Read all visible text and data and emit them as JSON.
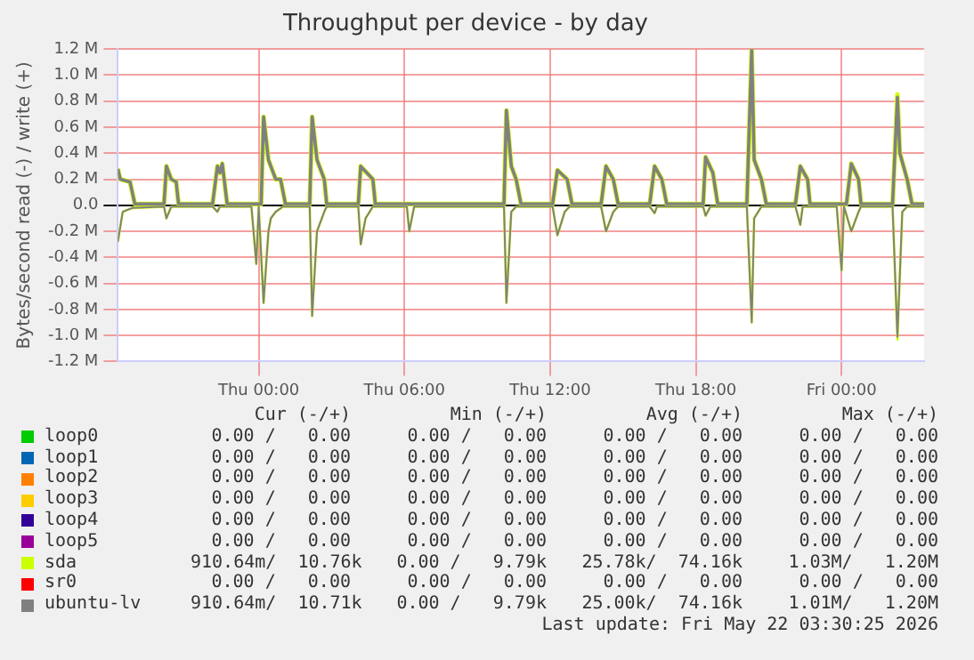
{
  "chart_data": {
    "type": "line",
    "title": "Throughput per device - by day",
    "ylabel": "Bytes/second read (-) / write (+)",
    "xlim": [
      "2026-05-20T18:12",
      "2026-05-22T03:24"
    ],
    "xticks": [
      {
        "value": "2026-05-21T00:00",
        "label": "Thu 00:00"
      },
      {
        "value": "2026-05-21T06:00",
        "label": "Thu 06:00"
      },
      {
        "value": "2026-05-21T12:00",
        "label": "Thu 12:00"
      },
      {
        "value": "2026-05-21T18:00",
        "label": "Thu 18:00"
      },
      {
        "value": "2026-05-22T00:00",
        "label": "Fri 00:00"
      }
    ],
    "ylim": [
      -1200000,
      1200000
    ],
    "yticks": [
      {
        "value": -1200000,
        "label": "-1.2 M"
      },
      {
        "value": -1000000,
        "label": "-1.0 M"
      },
      {
        "value": -800000,
        "label": "-0.8 M"
      },
      {
        "value": -600000,
        "label": "-0.6 M"
      },
      {
        "value": -400000,
        "label": "-0.4 M"
      },
      {
        "value": -200000,
        "label": "-0.2 M"
      },
      {
        "value": 0,
        "label": "0.0"
      },
      {
        "value": 200000,
        "label": "0.2 M"
      },
      {
        "value": 400000,
        "label": "0.4 M"
      },
      {
        "value": 600000,
        "label": "0.6 M"
      },
      {
        "value": 800000,
        "label": "0.8 M"
      },
      {
        "value": 1000000,
        "label": "1.0 M"
      },
      {
        "value": 1200000,
        "label": "1.2 M"
      }
    ],
    "grid": true,
    "legend": "bottom",
    "marker": "none",
    "line_style": "solid",
    "series": [
      {
        "name": "loop0",
        "color": "#00cc00"
      },
      {
        "name": "loop1",
        "color": "#0066b3"
      },
      {
        "name": "loop2",
        "color": "#ff8000"
      },
      {
        "name": "loop3",
        "color": "#ffcc00"
      },
      {
        "name": "loop4",
        "color": "#330099"
      },
      {
        "name": "loop5",
        "color": "#990099"
      },
      {
        "name": "sda",
        "color": "#ccff00",
        "x": [
          "2026-05-20T18:12",
          "2026-05-20T18:18",
          "2026-05-20T18:42",
          "2026-05-20T18:54",
          "2026-05-20T20:06",
          "2026-05-20T20:12",
          "2026-05-20T20:24",
          "2026-05-20T20:36",
          "2026-05-20T20:42",
          "2026-05-20T22:06",
          "2026-05-20T22:18",
          "2026-05-20T22:24",
          "2026-05-20T22:30",
          "2026-05-20T22:42",
          "2026-05-21T00:06",
          "2026-05-21T00:12",
          "2026-05-21T00:24",
          "2026-05-21T00:42",
          "2026-05-21T00:54",
          "2026-05-21T01:06",
          "2026-05-21T02:06",
          "2026-05-21T02:12",
          "2026-05-21T02:24",
          "2026-05-21T02:42",
          "2026-05-21T02:48",
          "2026-05-21T04:06",
          "2026-05-21T04:12",
          "2026-05-21T04:42",
          "2026-05-21T04:48",
          "2026-05-21T10:06",
          "2026-05-21T10:12",
          "2026-05-21T10:24",
          "2026-05-21T10:36",
          "2026-05-21T10:48",
          "2026-05-21T12:06",
          "2026-05-21T12:18",
          "2026-05-21T12:42",
          "2026-05-21T12:54",
          "2026-05-21T14:06",
          "2026-05-21T14:18",
          "2026-05-21T14:36",
          "2026-05-21T14:48",
          "2026-05-21T16:06",
          "2026-05-21T16:18",
          "2026-05-21T16:36",
          "2026-05-21T16:48",
          "2026-05-21T18:18",
          "2026-05-21T18:24",
          "2026-05-21T18:42",
          "2026-05-21T18:54",
          "2026-05-21T20:06",
          "2026-05-21T20:18",
          "2026-05-21T20:24",
          "2026-05-21T20:42",
          "2026-05-21T20:54",
          "2026-05-21T22:06",
          "2026-05-21T22:18",
          "2026-05-21T22:36",
          "2026-05-21T22:42",
          "2026-05-22T00:12",
          "2026-05-22T00:24",
          "2026-05-22T00:42",
          "2026-05-22T00:48",
          "2026-05-22T02:06",
          "2026-05-22T02:18",
          "2026-05-22T02:24",
          "2026-05-22T02:42",
          "2026-05-22T02:54",
          "2026-05-22T03:24"
        ],
        "values": [
          280000,
          200000,
          180000,
          10000,
          10000,
          300000,
          200000,
          180000,
          10000,
          10000,
          300000,
          250000,
          320000,
          10000,
          10000,
          680000,
          350000,
          200000,
          200000,
          10000,
          10000,
          680000,
          350000,
          200000,
          10000,
          10000,
          300000,
          200000,
          10000,
          10000,
          730000,
          300000,
          200000,
          10000,
          10000,
          270000,
          200000,
          10000,
          10000,
          300000,
          200000,
          10000,
          10000,
          300000,
          200000,
          10000,
          10000,
          370000,
          250000,
          10000,
          10000,
          1200000,
          350000,
          200000,
          10000,
          10000,
          300000,
          200000,
          10000,
          10000,
          320000,
          200000,
          10000,
          10000,
          850000,
          400000,
          200000,
          10000,
          10000
        ]
      },
      {
        "name": "sr0",
        "color": "#ff0000"
      },
      {
        "name": "ubuntu-lv",
        "color": "#808080",
        "x": [
          "2026-05-20T18:12",
          "2026-05-20T18:18",
          "2026-05-20T18:42",
          "2026-05-20T18:54",
          "2026-05-20T20:06",
          "2026-05-20T20:12",
          "2026-05-20T20:24",
          "2026-05-20T20:36",
          "2026-05-20T20:42",
          "2026-05-20T22:06",
          "2026-05-20T22:18",
          "2026-05-20T22:24",
          "2026-05-20T22:30",
          "2026-05-20T22:42",
          "2026-05-21T00:06",
          "2026-05-21T00:12",
          "2026-05-21T00:24",
          "2026-05-21T00:42",
          "2026-05-21T00:54",
          "2026-05-21T01:06",
          "2026-05-21T02:06",
          "2026-05-21T02:12",
          "2026-05-21T02:24",
          "2026-05-21T02:42",
          "2026-05-21T02:48",
          "2026-05-21T04:06",
          "2026-05-21T04:12",
          "2026-05-21T04:42",
          "2026-05-21T04:48",
          "2026-05-21T10:06",
          "2026-05-21T10:12",
          "2026-05-21T10:24",
          "2026-05-21T10:36",
          "2026-05-21T10:48",
          "2026-05-21T12:06",
          "2026-05-21T12:18",
          "2026-05-21T12:42",
          "2026-05-21T12:54",
          "2026-05-21T14:06",
          "2026-05-21T14:18",
          "2026-05-21T14:36",
          "2026-05-21T14:48",
          "2026-05-21T16:06",
          "2026-05-21T16:18",
          "2026-05-21T16:36",
          "2026-05-21T16:48",
          "2026-05-21T18:18",
          "2026-05-21T18:24",
          "2026-05-21T18:42",
          "2026-05-21T18:54",
          "2026-05-21T20:06",
          "2026-05-21T20:18",
          "2026-05-21T20:24",
          "2026-05-21T20:42",
          "2026-05-21T20:54",
          "2026-05-21T22:06",
          "2026-05-21T22:18",
          "2026-05-21T22:36",
          "2026-05-21T22:42",
          "2026-05-22T00:12",
          "2026-05-22T00:24",
          "2026-05-22T00:42",
          "2026-05-22T00:48",
          "2026-05-22T02:06",
          "2026-05-22T02:18",
          "2026-05-22T02:24",
          "2026-05-22T02:42",
          "2026-05-22T02:54",
          "2026-05-22T03:24"
        ],
        "values": [
          280000,
          200000,
          180000,
          10000,
          10000,
          300000,
          200000,
          180000,
          10000,
          10000,
          300000,
          250000,
          320000,
          10000,
          10000,
          680000,
          350000,
          200000,
          200000,
          10000,
          10000,
          680000,
          350000,
          200000,
          10000,
          10000,
          300000,
          200000,
          10000,
          10000,
          730000,
          300000,
          200000,
          10000,
          10000,
          270000,
          200000,
          10000,
          10000,
          300000,
          200000,
          10000,
          10000,
          300000,
          200000,
          10000,
          10000,
          370000,
          250000,
          10000,
          10000,
          1200000,
          350000,
          200000,
          10000,
          10000,
          300000,
          200000,
          10000,
          10000,
          320000,
          200000,
          10000,
          10000,
          830000,
          400000,
          200000,
          10000,
          10000
        ]
      },
      {
        "color": "#ccff00",
        "x": [
          "2026-05-20T18:12",
          "2026-05-20T18:24",
          "2026-05-20T18:48",
          "2026-05-20T20:06",
          "2026-05-20T20:12",
          "2026-05-20T20:24",
          "2026-05-20T22:06",
          "2026-05-20T22:18",
          "2026-05-20T22:24",
          "2026-05-20T23:42",
          "2026-05-20T23:54",
          "2026-05-21T00:00",
          "2026-05-21T00:12",
          "2026-05-21T00:24",
          "2026-05-21T00:30",
          "2026-05-21T00:42",
          "2026-05-21T01:00",
          "2026-05-21T02:06",
          "2026-05-21T02:12",
          "2026-05-21T02:24",
          "2026-05-21T02:42",
          "2026-05-21T02:48",
          "2026-05-21T04:06",
          "2026-05-21T04:12",
          "2026-05-21T04:24",
          "2026-05-21T04:42",
          "2026-05-21T06:06",
          "2026-05-21T06:12",
          "2026-05-21T06:24",
          "2026-05-21T10:06",
          "2026-05-21T10:12",
          "2026-05-21T10:24",
          "2026-05-21T10:36",
          "2026-05-21T12:06",
          "2026-05-21T12:18",
          "2026-05-21T12:36",
          "2026-05-21T12:48",
          "2026-05-21T14:06",
          "2026-05-21T14:18",
          "2026-05-21T14:36",
          "2026-05-21T14:48",
          "2026-05-21T16:06",
          "2026-05-21T16:18",
          "2026-05-21T16:24",
          "2026-05-21T18:18",
          "2026-05-21T18:24",
          "2026-05-21T18:36",
          "2026-05-21T20:06",
          "2026-05-21T20:18",
          "2026-05-21T20:24",
          "2026-05-21T20:42",
          "2026-05-21T22:06",
          "2026-05-21T22:18",
          "2026-05-21T22:24",
          "2026-05-21T23:48",
          "2026-05-22T00:00",
          "2026-05-22T00:06",
          "2026-05-22T00:24",
          "2026-05-22T00:42",
          "2026-05-22T00:48",
          "2026-05-22T02:06",
          "2026-05-22T02:18",
          "2026-05-22T02:30",
          "2026-05-22T02:42",
          "2026-05-22T03:24"
        ],
        "values": [
          -280000,
          -50000,
          -20000,
          -10000,
          -100000,
          -10000,
          -10000,
          -50000,
          -10000,
          -10000,
          -450000,
          -10000,
          -750000,
          -200000,
          -100000,
          -50000,
          -10000,
          -10000,
          -850000,
          -200000,
          -50000,
          -10000,
          -10000,
          -300000,
          -100000,
          -10000,
          -10000,
          -200000,
          -10000,
          -10000,
          -750000,
          -50000,
          -10000,
          -10000,
          -230000,
          -50000,
          -10000,
          -10000,
          -200000,
          -50000,
          -10000,
          -10000,
          -60000,
          -10000,
          -10000,
          -80000,
          -10000,
          -10000,
          -900000,
          -100000,
          -10000,
          -10000,
          -150000,
          -10000,
          -10000,
          -500000,
          -10000,
          -200000,
          -50000,
          -10000,
          -10000,
          -1030000,
          -50000,
          -10000,
          -10000
        ]
      },
      {
        "color": "#808080",
        "x": [
          "2026-05-20T18:12",
          "2026-05-20T18:24",
          "2026-05-20T18:48",
          "2026-05-20T20:06",
          "2026-05-20T20:12",
          "2026-05-20T20:24",
          "2026-05-20T22:06",
          "2026-05-20T22:18",
          "2026-05-20T22:24",
          "2026-05-20T23:42",
          "2026-05-20T23:54",
          "2026-05-21T00:00",
          "2026-05-21T00:12",
          "2026-05-21T00:24",
          "2026-05-21T00:30",
          "2026-05-21T00:42",
          "2026-05-21T01:00",
          "2026-05-21T02:06",
          "2026-05-21T02:12",
          "2026-05-21T02:24",
          "2026-05-21T02:42",
          "2026-05-21T02:48",
          "2026-05-21T04:06",
          "2026-05-21T04:12",
          "2026-05-21T04:24",
          "2026-05-21T04:42",
          "2026-05-21T06:06",
          "2026-05-21T06:12",
          "2026-05-21T06:24",
          "2026-05-21T10:06",
          "2026-05-21T10:12",
          "2026-05-21T10:24",
          "2026-05-21T10:36",
          "2026-05-21T12:06",
          "2026-05-21T12:18",
          "2026-05-21T12:36",
          "2026-05-21T12:48",
          "2026-05-21T14:06",
          "2026-05-21T14:18",
          "2026-05-21T14:36",
          "2026-05-21T14:48",
          "2026-05-21T16:06",
          "2026-05-21T16:18",
          "2026-05-21T16:24",
          "2026-05-21T18:18",
          "2026-05-21T18:24",
          "2026-05-21T18:36",
          "2026-05-21T20:06",
          "2026-05-21T20:18",
          "2026-05-21T20:24",
          "2026-05-21T20:42",
          "2026-05-21T22:06",
          "2026-05-21T22:18",
          "2026-05-21T22:24",
          "2026-05-21T23:48",
          "2026-05-22T00:00",
          "2026-05-22T00:06",
          "2026-05-22T00:24",
          "2026-05-22T00:42",
          "2026-05-22T00:48",
          "2026-05-22T02:06",
          "2026-05-22T02:18",
          "2026-05-22T02:30",
          "2026-05-22T02:42",
          "2026-05-22T03:24"
        ],
        "values": [
          -280000,
          -50000,
          -20000,
          -10000,
          -100000,
          -10000,
          -10000,
          -50000,
          -10000,
          -10000,
          -450000,
          -10000,
          -750000,
          -200000,
          -100000,
          -50000,
          -10000,
          -10000,
          -850000,
          -200000,
          -50000,
          -10000,
          -10000,
          -300000,
          -100000,
          -10000,
          -10000,
          -200000,
          -10000,
          -10000,
          -750000,
          -50000,
          -10000,
          -10000,
          -230000,
          -50000,
          -10000,
          -10000,
          -200000,
          -50000,
          -10000,
          -10000,
          -60000,
          -10000,
          -10000,
          -80000,
          -10000,
          -10000,
          -900000,
          -100000,
          -10000,
          -10000,
          -150000,
          -10000,
          -10000,
          -500000,
          -10000,
          -200000,
          -50000,
          -10000,
          -10000,
          -1010000,
          -50000,
          -10000,
          -10000
        ]
      }
    ],
    "annotations": [
      "Cur (-/+)",
      "Min (-/+)",
      "Avg (-/+)",
      "Max (-/+)",
      "0.00 /   0.00",
      "0.00 /   0.00",
      "0.00 /   0.00",
      "0.00 /   0.00",
      "0.00 /   0.00",
      "0.00 /   0.00",
      "0.00 /   0.00",
      "0.00 /   0.00",
      "0.00 /   0.00",
      "0.00 /   0.00",
      "0.00 /   0.00",
      "0.00 /   0.00",
      "0.00 /   0.00",
      "0.00 /   0.00",
      "0.00 /   0.00",
      "0.00 /   0.00",
      "0.00 /   0.00",
      "0.00 /   0.00",
      "0.00 /   0.00",
      "0.00 /   0.00",
      "0.00 /   0.00",
      "0.00 /   0.00",
      "0.00 /   0.00",
      "0.00 /   0.00",
      "910.64m/  10.76k",
      "0.00 /   9.79k",
      "25.78k/  74.16k",
      "1.03M/   1.20M",
      "0.00 /   0.00",
      "0.00 /   0.00",
      "0.00 /   0.00",
      "0.00 /   0.00",
      "910.64m/  10.71k",
      "0.00 /   9.79k",
      "25.00k/  74.16k",
      "1.01M/   1.20M",
      "Last update: Fri May 22 03:30:25 2026"
    ]
  }
}
